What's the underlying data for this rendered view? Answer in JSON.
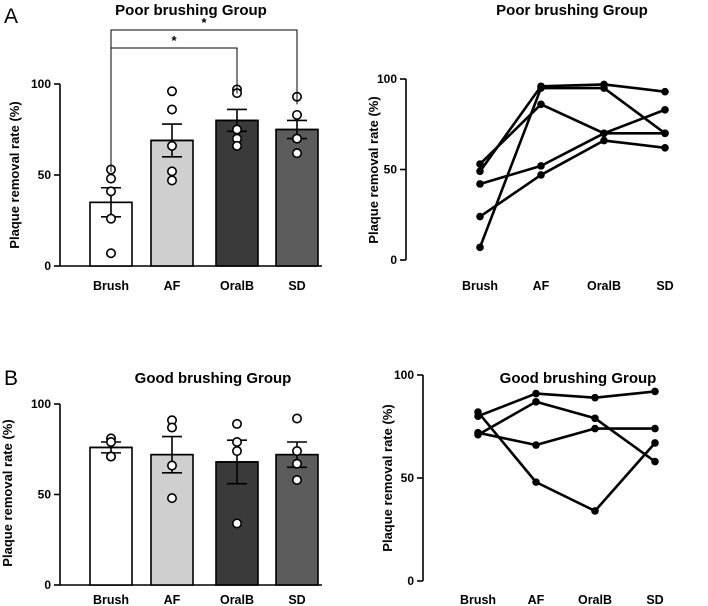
{
  "panels": [
    {
      "label": "A"
    },
    {
      "label": "B"
    }
  ],
  "chart_data": [
    {
      "id": "A-bar",
      "type": "bar",
      "title": "Poor brushing Group",
      "ylabel": "Plaque removal rate (%)",
      "categories": [
        "Brush",
        "AF",
        "OralB",
        "SD"
      ],
      "values": [
        35,
        69,
        80,
        75
      ],
      "errors": [
        8,
        9,
        6,
        5
      ],
      "bar_colors": [
        "#ffffff",
        "#cfcfcf",
        "#3a3a3a",
        "#5c5c5c"
      ],
      "points": [
        [
          53,
          48,
          41,
          26,
          7
        ],
        [
          96,
          86,
          66,
          52,
          47
        ],
        [
          97,
          95,
          75,
          70,
          66
        ],
        [
          93,
          83,
          70,
          70,
          62
        ]
      ],
      "ylim": [
        0,
        100
      ],
      "yticks": [
        0,
        50,
        100
      ],
      "significance": [
        {
          "from": 0,
          "to": 2,
          "label": "*"
        },
        {
          "from": 0,
          "to": 3,
          "label": "*"
        }
      ]
    },
    {
      "id": "A-line",
      "type": "line",
      "title": "Poor brushing Group",
      "ylabel": "Plaque removal rate (%)",
      "categories": [
        "Brush",
        "AF",
        "OralB",
        "SD"
      ],
      "series": [
        {
          "values": [
            53,
            86,
            70,
            70
          ]
        },
        {
          "values": [
            49,
            96,
            97,
            93
          ]
        },
        {
          "values": [
            42,
            52,
            70,
            83
          ]
        },
        {
          "values": [
            24,
            47,
            66,
            62
          ]
        },
        {
          "values": [
            7,
            95,
            95,
            70
          ]
        }
      ],
      "ylim": [
        0,
        100
      ],
      "yticks": [
        0,
        50,
        100
      ]
    },
    {
      "id": "B-bar",
      "type": "bar",
      "title": "Good brushing Group",
      "ylabel": "Plaque removal rate (%)",
      "categories": [
        "Brush",
        "AF",
        "OralB",
        "SD"
      ],
      "values": [
        76,
        72,
        68,
        72
      ],
      "errors": [
        3,
        10,
        12,
        7
      ],
      "bar_colors": [
        "#ffffff",
        "#cfcfcf",
        "#3a3a3a",
        "#5c5c5c"
      ],
      "points": [
        [
          81,
          79,
          71,
          71
        ],
        [
          91,
          87,
          66,
          48
        ],
        [
          89,
          79,
          74,
          34
        ],
        [
          92,
          74,
          67,
          58
        ]
      ],
      "ylim": [
        0,
        100
      ],
      "yticks": [
        0,
        50,
        100
      ]
    },
    {
      "id": "B-line",
      "type": "line",
      "title": "Good brushing Group",
      "ylabel": "Plaque removal rate (%)",
      "categories": [
        "Brush",
        "AF",
        "OralB",
        "SD"
      ],
      "series": [
        {
          "values": [
            82,
            48,
            34,
            67
          ]
        },
        {
          "values": [
            80,
            91,
            89,
            92
          ]
        },
        {
          "values": [
            72,
            66,
            74,
            74
          ]
        },
        {
          "values": [
            71,
            87,
            79,
            58
          ]
        }
      ],
      "ylim": [
        0,
        100
      ],
      "yticks": [
        0,
        50,
        100
      ]
    }
  ]
}
